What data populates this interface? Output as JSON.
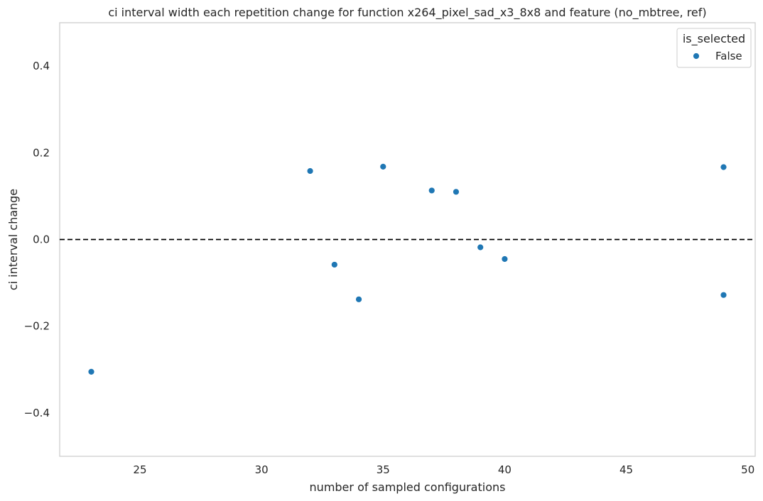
{
  "chart_data": {
    "type": "scatter",
    "title": "ci interval width each repetition change for function x264_pixel_sad_x3_8x8 and feature (no_mbtree, ref)",
    "xlabel": "number of sampled configurations",
    "ylabel": "ci interval change",
    "xlim": [
      21.7,
      50.3
    ],
    "ylim": [
      -0.5,
      0.5
    ],
    "xticks": [
      25,
      30,
      35,
      40,
      45,
      50
    ],
    "xtick_labels": [
      "25",
      "30",
      "35",
      "40",
      "45",
      "50"
    ],
    "yticks": [
      -0.4,
      -0.2,
      0.0,
      0.2,
      0.4
    ],
    "ytick_labels": [
      "−0.4",
      "−0.2",
      "0.0",
      "0.2",
      "0.4"
    ],
    "grid": false,
    "reference_line": {
      "y": 0.0,
      "style": "dashed",
      "color": "#000000"
    },
    "legend": {
      "title": "is_selected",
      "position": "top-right",
      "entries": [
        {
          "label": "False",
          "color": "#1f77b4"
        }
      ]
    },
    "series": [
      {
        "name": "False",
        "color": "#1f77b4",
        "points": [
          {
            "x": 23,
            "y": -0.305
          },
          {
            "x": 32,
            "y": 0.158
          },
          {
            "x": 33,
            "y": -0.058
          },
          {
            "x": 34,
            "y": -0.138
          },
          {
            "x": 35,
            "y": 0.168
          },
          {
            "x": 37,
            "y": 0.113
          },
          {
            "x": 38,
            "y": 0.11
          },
          {
            "x": 39,
            "y": -0.018
          },
          {
            "x": 40,
            "y": -0.045
          },
          {
            "x": 49,
            "y": 0.167
          },
          {
            "x": 49,
            "y": -0.128
          }
        ]
      }
    ]
  }
}
